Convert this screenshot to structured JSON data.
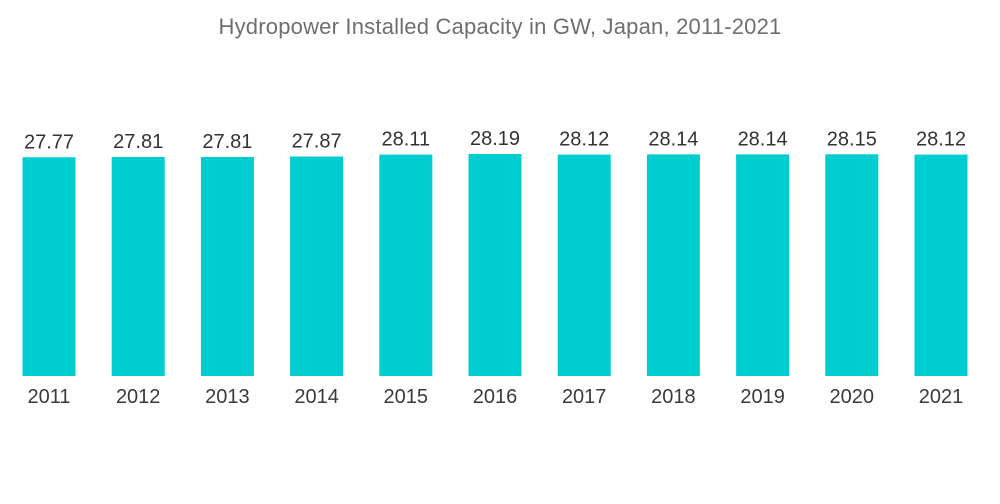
{
  "chart_data": {
    "type": "bar",
    "title": "Hydropower Installed Capacity in GW, Japan, 2011-2021",
    "xlabel": "",
    "ylabel": "",
    "categories": [
      "2011",
      "2012",
      "2013",
      "2014",
      "2015",
      "2016",
      "2017",
      "2018",
      "2019",
      "2020",
      "2021"
    ],
    "values": [
      27.77,
      27.81,
      27.81,
      27.87,
      28.11,
      28.19,
      28.12,
      28.14,
      28.14,
      28.15,
      28.12
    ],
    "value_labels": [
      "27.77",
      "27.81",
      "27.81",
      "27.87",
      "28.11",
      "28.19",
      "28.12",
      "28.14",
      "28.14",
      "28.15",
      "28.12"
    ],
    "ylim": [
      0,
      28.19
    ],
    "grid": false,
    "legend": "none",
    "bar_color": "#00CDD0"
  }
}
